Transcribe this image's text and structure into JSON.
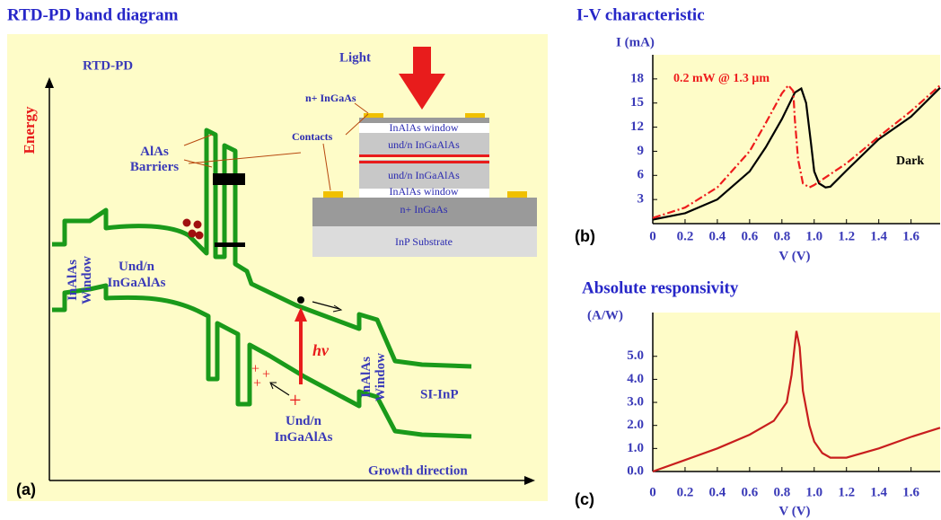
{
  "band_diagram": {
    "title": "RTD-PD band diagram",
    "label": "RTD-PD",
    "y_axis": "Energy",
    "x_axis": "Growth direction",
    "panel": "(a)",
    "light": "Light",
    "barriers": [
      "AlAs",
      "Barriers"
    ],
    "contacts": "Contacts",
    "layers": [
      "n+ InGaAs",
      "InAlAs window",
      "und/n InGaAlAs",
      "und/n InGaAlAs",
      "InAlAs window",
      "n+ InGaAs",
      "InP Substrate"
    ],
    "window_left": [
      "InAlAs",
      "Window"
    ],
    "region_left": [
      "Und/n",
      "InGaAlAs"
    ],
    "photon": "hν",
    "region_bottom": [
      "Und/n",
      "InGaAlAs"
    ],
    "window_right": [
      "InAlAs",
      "Window"
    ],
    "substrate": "SI-InP"
  },
  "chart_data": [
    {
      "type": "line",
      "title": "I-V characteristic",
      "y_label": "I (mA)",
      "x_label": "V (V)",
      "panel": "(b)",
      "xlim": [
        0,
        1.78
      ],
      "ylim": [
        0,
        21
      ],
      "xticks": [
        0,
        0.2,
        0.4,
        0.6,
        0.8,
        {
          "value": 1,
          "label": "1.0"
        },
        1.2,
        1.4,
        1.6
      ],
      "yticks": [
        3,
        6,
        9,
        12,
        15,
        18
      ],
      "series": [
        {
          "name": "Dark",
          "color": "#000000",
          "style": "solid",
          "x": [
            0,
            0.2,
            0.4,
            0.6,
            0.7,
            0.8,
            0.88,
            0.92,
            0.95,
            0.98,
            1.0,
            1.03,
            1.07,
            1.1,
            1.2,
            1.4,
            1.6,
            1.78
          ],
          "values": [
            0.5,
            1.3,
            3,
            6.5,
            9.5,
            13,
            16.3,
            16.8,
            15,
            10,
            6.5,
            5,
            4.5,
            4.6,
            6.6,
            10.5,
            13.3,
            16.9
          ]
        },
        {
          "name": "0.2 mW @ 1.3 μm",
          "color": "#ee1c1c",
          "style": "dash-dot",
          "x": [
            0,
            0.2,
            0.4,
            0.6,
            0.7,
            0.8,
            0.84,
            0.87,
            0.88,
            0.9,
            0.93,
            0.97,
            1.0,
            1.2,
            1.4,
            1.6,
            1.78
          ],
          "values": [
            0.7,
            2,
            4.5,
            9,
            12.5,
            16.2,
            17.2,
            16.5,
            13,
            8,
            5,
            4.5,
            4.8,
            7.5,
            10.8,
            14,
            17.2
          ]
        }
      ]
    },
    {
      "type": "line",
      "title": "Absolute responsivity",
      "y_label": "(A/W)",
      "x_label": "V (V)",
      "panel": "(c)",
      "xlim": [
        0,
        1.78
      ],
      "ylim": [
        0,
        6.9
      ],
      "xticks": [
        0,
        0.2,
        0.4,
        0.6,
        0.8,
        {
          "value": 1,
          "label": "1.0"
        },
        1.2,
        1.4,
        1.6
      ],
      "yticks": [
        {
          "value": 0,
          "label": "0.0"
        },
        {
          "value": 1,
          "label": "1.0"
        },
        {
          "value": 2,
          "label": "2.0"
        },
        {
          "value": 3,
          "label": "3.0"
        },
        {
          "value": 4,
          "label": "4.0"
        },
        {
          "value": 5,
          "label": "5.0"
        }
      ],
      "series": [
        {
          "color": "#c81e1e",
          "style": "solid",
          "x": [
            0,
            0.2,
            0.4,
            0.6,
            0.75,
            0.83,
            0.86,
            0.88,
            0.89,
            0.91,
            0.93,
            0.97,
            1.0,
            1.05,
            1.1,
            1.2,
            1.4,
            1.6,
            1.78
          ],
          "values": [
            0,
            0.5,
            1,
            1.6,
            2.2,
            3,
            4.2,
            5.5,
            6.1,
            5.4,
            3.5,
            2,
            1.3,
            0.8,
            0.6,
            0.6,
            1,
            1.5,
            1.9
          ]
        }
      ]
    }
  ]
}
